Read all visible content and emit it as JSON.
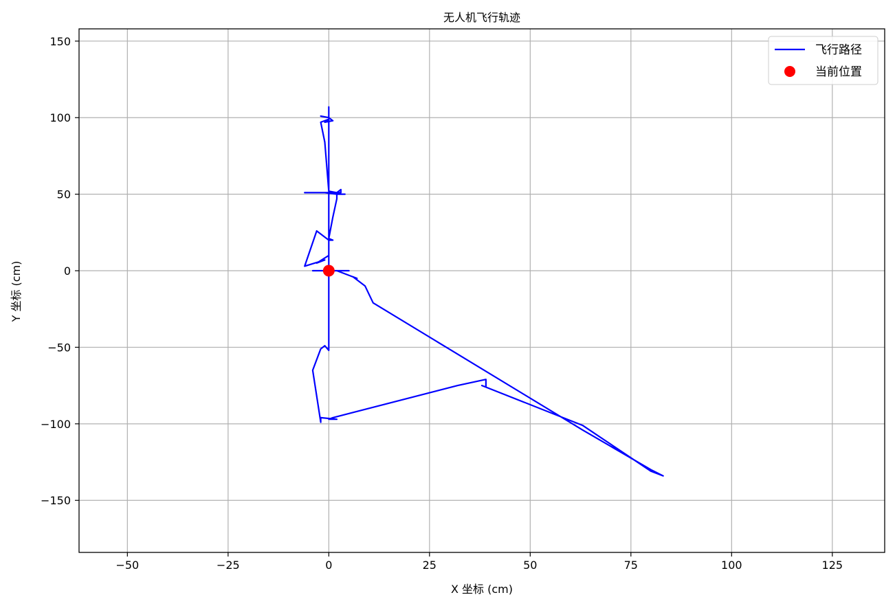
{
  "chart_data": {
    "type": "line",
    "title": "无人机飞行轨迹",
    "xlabel": "X 坐标 (cm)",
    "ylabel": "Y 坐标 (cm)",
    "xlim": [
      -62,
      138
    ],
    "ylim": [
      -184,
      158
    ],
    "xticks": [
      -50,
      -25,
      0,
      25,
      50,
      75,
      100,
      125
    ],
    "yticks": [
      -150,
      -100,
      -50,
      0,
      50,
      100,
      150
    ],
    "xtick_labels": [
      "−50",
      "−25",
      "0",
      "25",
      "50",
      "75",
      "100",
      "125"
    ],
    "ytick_labels": [
      "−150",
      "−100",
      "−50",
      "0",
      "50",
      "100",
      "150"
    ],
    "grid": true,
    "legend_position": "top-right",
    "series": [
      {
        "name": "飞行路径",
        "kind": "line",
        "color": "#0000ff",
        "points": [
          [
            0,
            0
          ],
          [
            0,
            107
          ],
          [
            0,
            100
          ],
          [
            -2,
            101
          ],
          [
            0,
            100
          ],
          [
            1,
            98
          ],
          [
            -1,
            97
          ],
          [
            0,
            99
          ],
          [
            -2,
            97
          ],
          [
            -1,
            84
          ],
          [
            0,
            52
          ],
          [
            2,
            51
          ],
          [
            3,
            53
          ],
          [
            3,
            51
          ],
          [
            0,
            51
          ],
          [
            -6,
            51
          ],
          [
            -1,
            51
          ],
          [
            2,
            50
          ],
          [
            4,
            50
          ],
          [
            2,
            50
          ],
          [
            2,
            47
          ],
          [
            1,
            35
          ],
          [
            0,
            21
          ],
          [
            1,
            20
          ],
          [
            0,
            20
          ],
          [
            -3,
            26
          ],
          [
            -6,
            3
          ],
          [
            -1,
            7
          ],
          [
            -3,
            5
          ],
          [
            0,
            10
          ],
          [
            0,
            2
          ],
          [
            -1,
            0
          ],
          [
            -4,
            0
          ],
          [
            5,
            0
          ],
          [
            2,
            0
          ],
          [
            4,
            -2
          ],
          [
            7,
            -5
          ],
          [
            6,
            -4
          ],
          [
            9,
            -10
          ],
          [
            11,
            -21
          ],
          [
            63,
            -104
          ],
          [
            80,
            -130
          ],
          [
            83,
            -134
          ],
          [
            80,
            -131
          ],
          [
            63,
            -101
          ],
          [
            38,
            -75
          ],
          [
            39,
            -76
          ],
          [
            39,
            -71
          ],
          [
            32,
            -75
          ],
          [
            1,
            -96
          ],
          [
            0,
            -97
          ],
          [
            2,
            -97
          ],
          [
            -2,
            -96
          ],
          [
            -2,
            -99
          ],
          [
            -4,
            -65
          ],
          [
            -2,
            -51
          ],
          [
            -1,
            -49
          ],
          [
            0,
            -52
          ],
          [
            0,
            -50
          ],
          [
            0,
            0
          ]
        ]
      },
      {
        "name": "当前位置",
        "kind": "marker",
        "color": "#ff0000",
        "points": [
          [
            0,
            0
          ]
        ]
      }
    ]
  }
}
